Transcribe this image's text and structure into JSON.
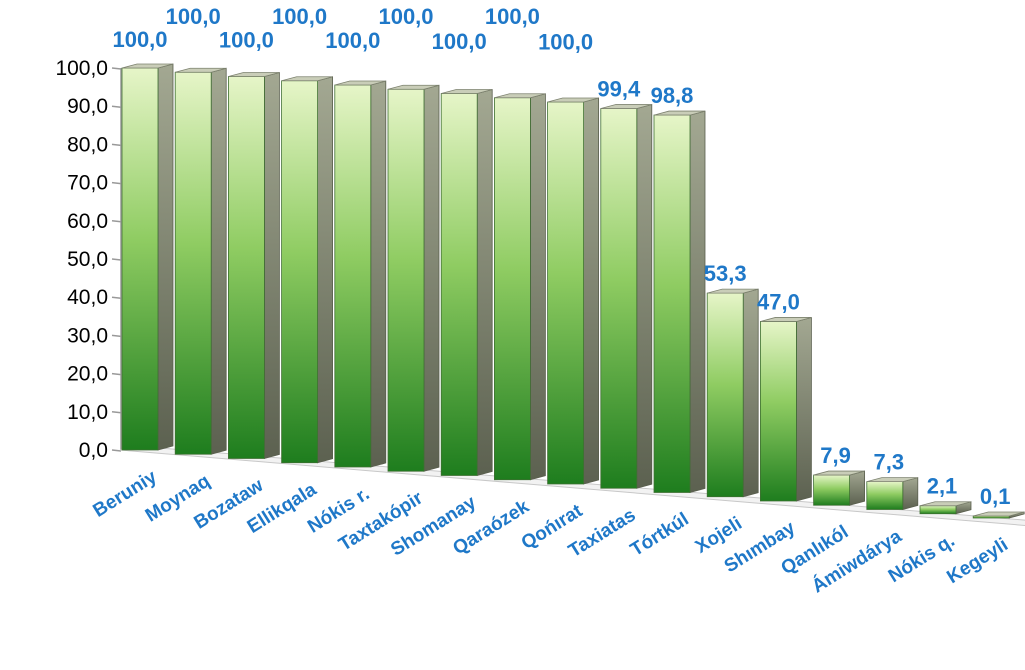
{
  "chart_data": {
    "type": "bar",
    "categories": [
      "Beruniy",
      "Moynaq",
      "Bozataw",
      "Ellikqala",
      "Nókis r.",
      "Taxtakópir",
      "Shomanay",
      "Qaraózek",
      "Qońırat",
      "Taxiatas",
      "Tórtkúl",
      "Xojeli",
      "Shımbay",
      "Qanlıkól",
      "Ámiwdárya",
      "Nókis q.",
      "Kegeyli"
    ],
    "values": [
      100.0,
      100.0,
      100.0,
      100.0,
      100.0,
      100.0,
      100.0,
      100.0,
      100.0,
      99.4,
      98.8,
      53.3,
      47.0,
      7.9,
      7.3,
      2.1,
      0.1
    ],
    "data_labels": [
      "100,0",
      "100,0",
      "100,0",
      "100,0",
      "100,0",
      "100,0",
      "100,0",
      "100,0",
      "100,0",
      "99,4",
      "98,8",
      "53,3",
      "47,0",
      "7,9",
      "7,3",
      "2,1",
      "0,1"
    ],
    "yticks": [
      "0,0",
      "10,0",
      "20,0",
      "30,0",
      "40,0",
      "50,0",
      "60,0",
      "70,0",
      "80,0",
      "90,0",
      "100,0"
    ],
    "ylim": [
      0,
      100
    ],
    "title": "",
    "xlabel": "",
    "ylabel": "",
    "grid": false,
    "legend": "none",
    "style": "3d-perspective",
    "colors": {
      "bar_top": "#e6f5c8",
      "bar_mid": "#7fc35a",
      "bar_bottom": "#1e7d1e",
      "bar_side": "#8a8f7a",
      "bar_cap": "#c9cdb8",
      "label": "#1f78c8",
      "axis": "#999999"
    }
  }
}
